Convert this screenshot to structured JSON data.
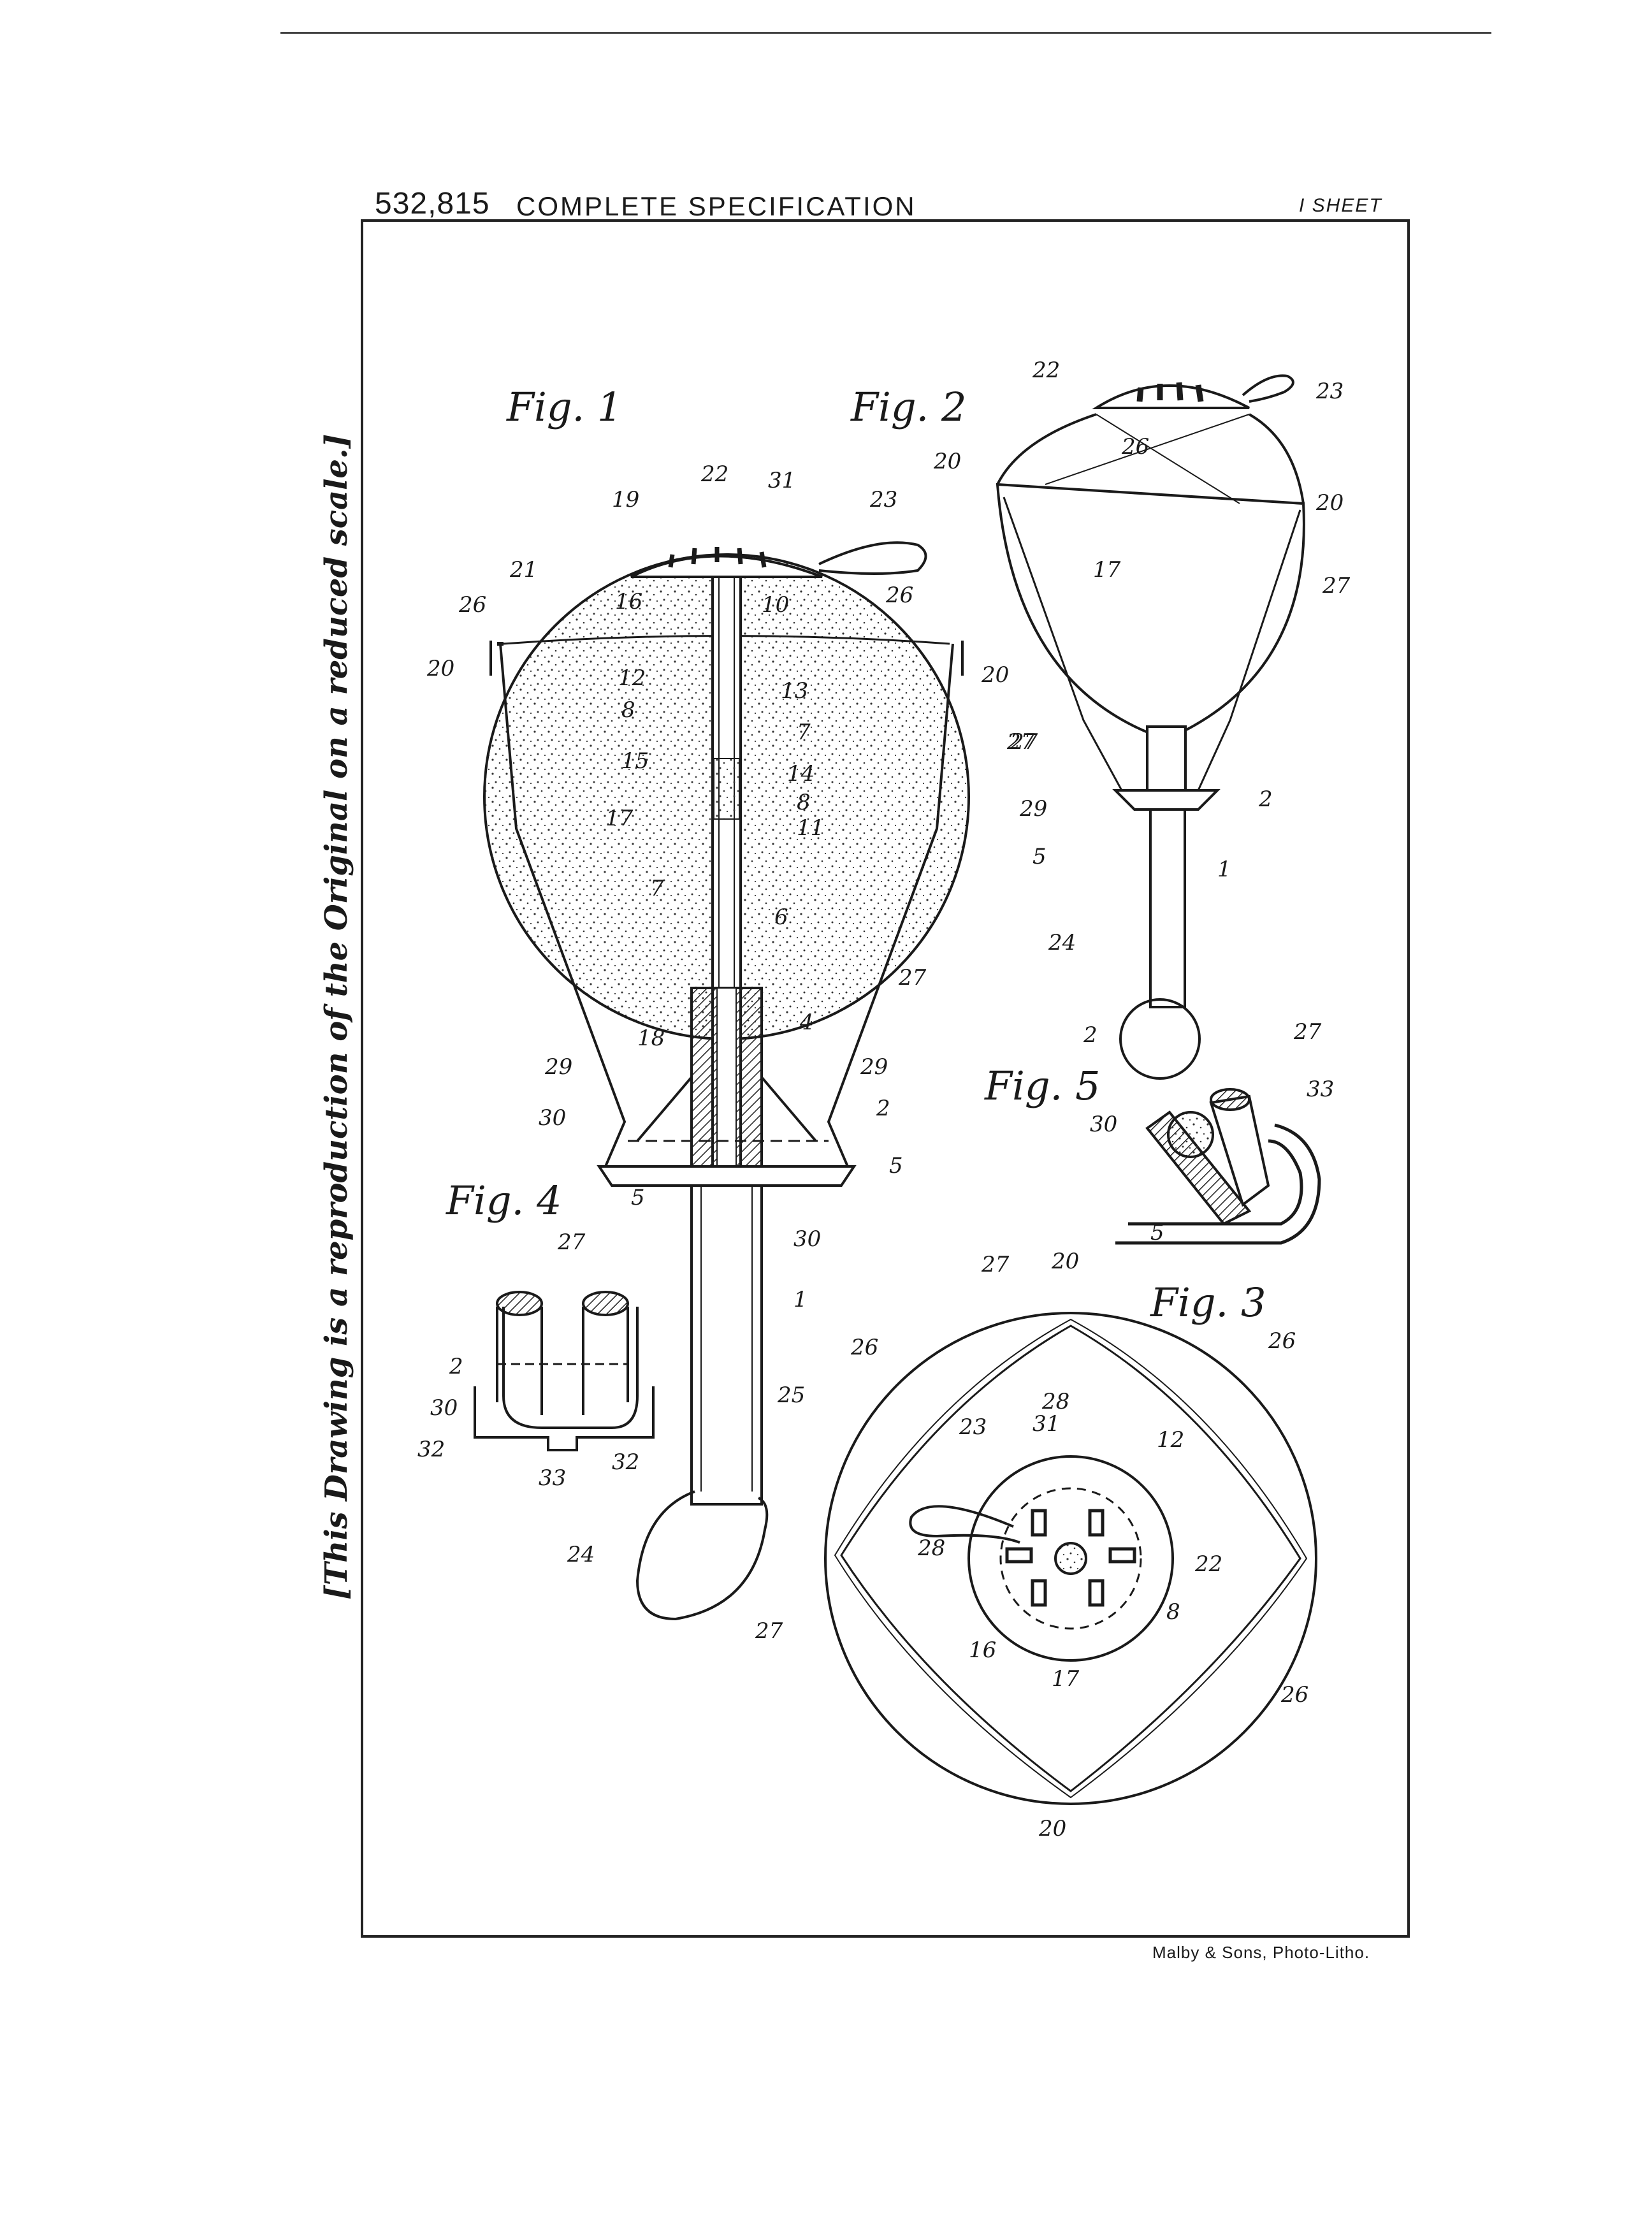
{
  "header": {
    "number": "532,815",
    "title": "COMPLETE SPECIFICATION",
    "sheets": "I SHEET"
  },
  "side_note": "[This Drawing is a reproduction of the Original on a reduced scale.]",
  "printer": "Malby & Sons, Photo-Litho.",
  "figures": {
    "fig1": "Fig. 1",
    "fig2": "Fig. 2",
    "fig3": "Fig. 3",
    "fig4": "Fig. 4",
    "fig5": "Fig. 5"
  },
  "ref": {
    "r1": "1",
    "r2": "2",
    "r4": "4",
    "r5": "5",
    "r6": "6",
    "r7": "7",
    "r8": "8",
    "r10": "10",
    "r11": "11",
    "r12": "12",
    "r13": "13",
    "r14": "14",
    "r15": "15",
    "r16": "16",
    "r17": "17",
    "r18": "18",
    "r19": "19",
    "r20": "20",
    "r21": "21",
    "r22": "22",
    "r23": "23",
    "r24": "24",
    "r25": "25",
    "r26": "26",
    "r27": "27",
    "r28": "28",
    "r29": "29",
    "r30": "30",
    "r31": "31",
    "r32": "32",
    "r33": "33"
  }
}
